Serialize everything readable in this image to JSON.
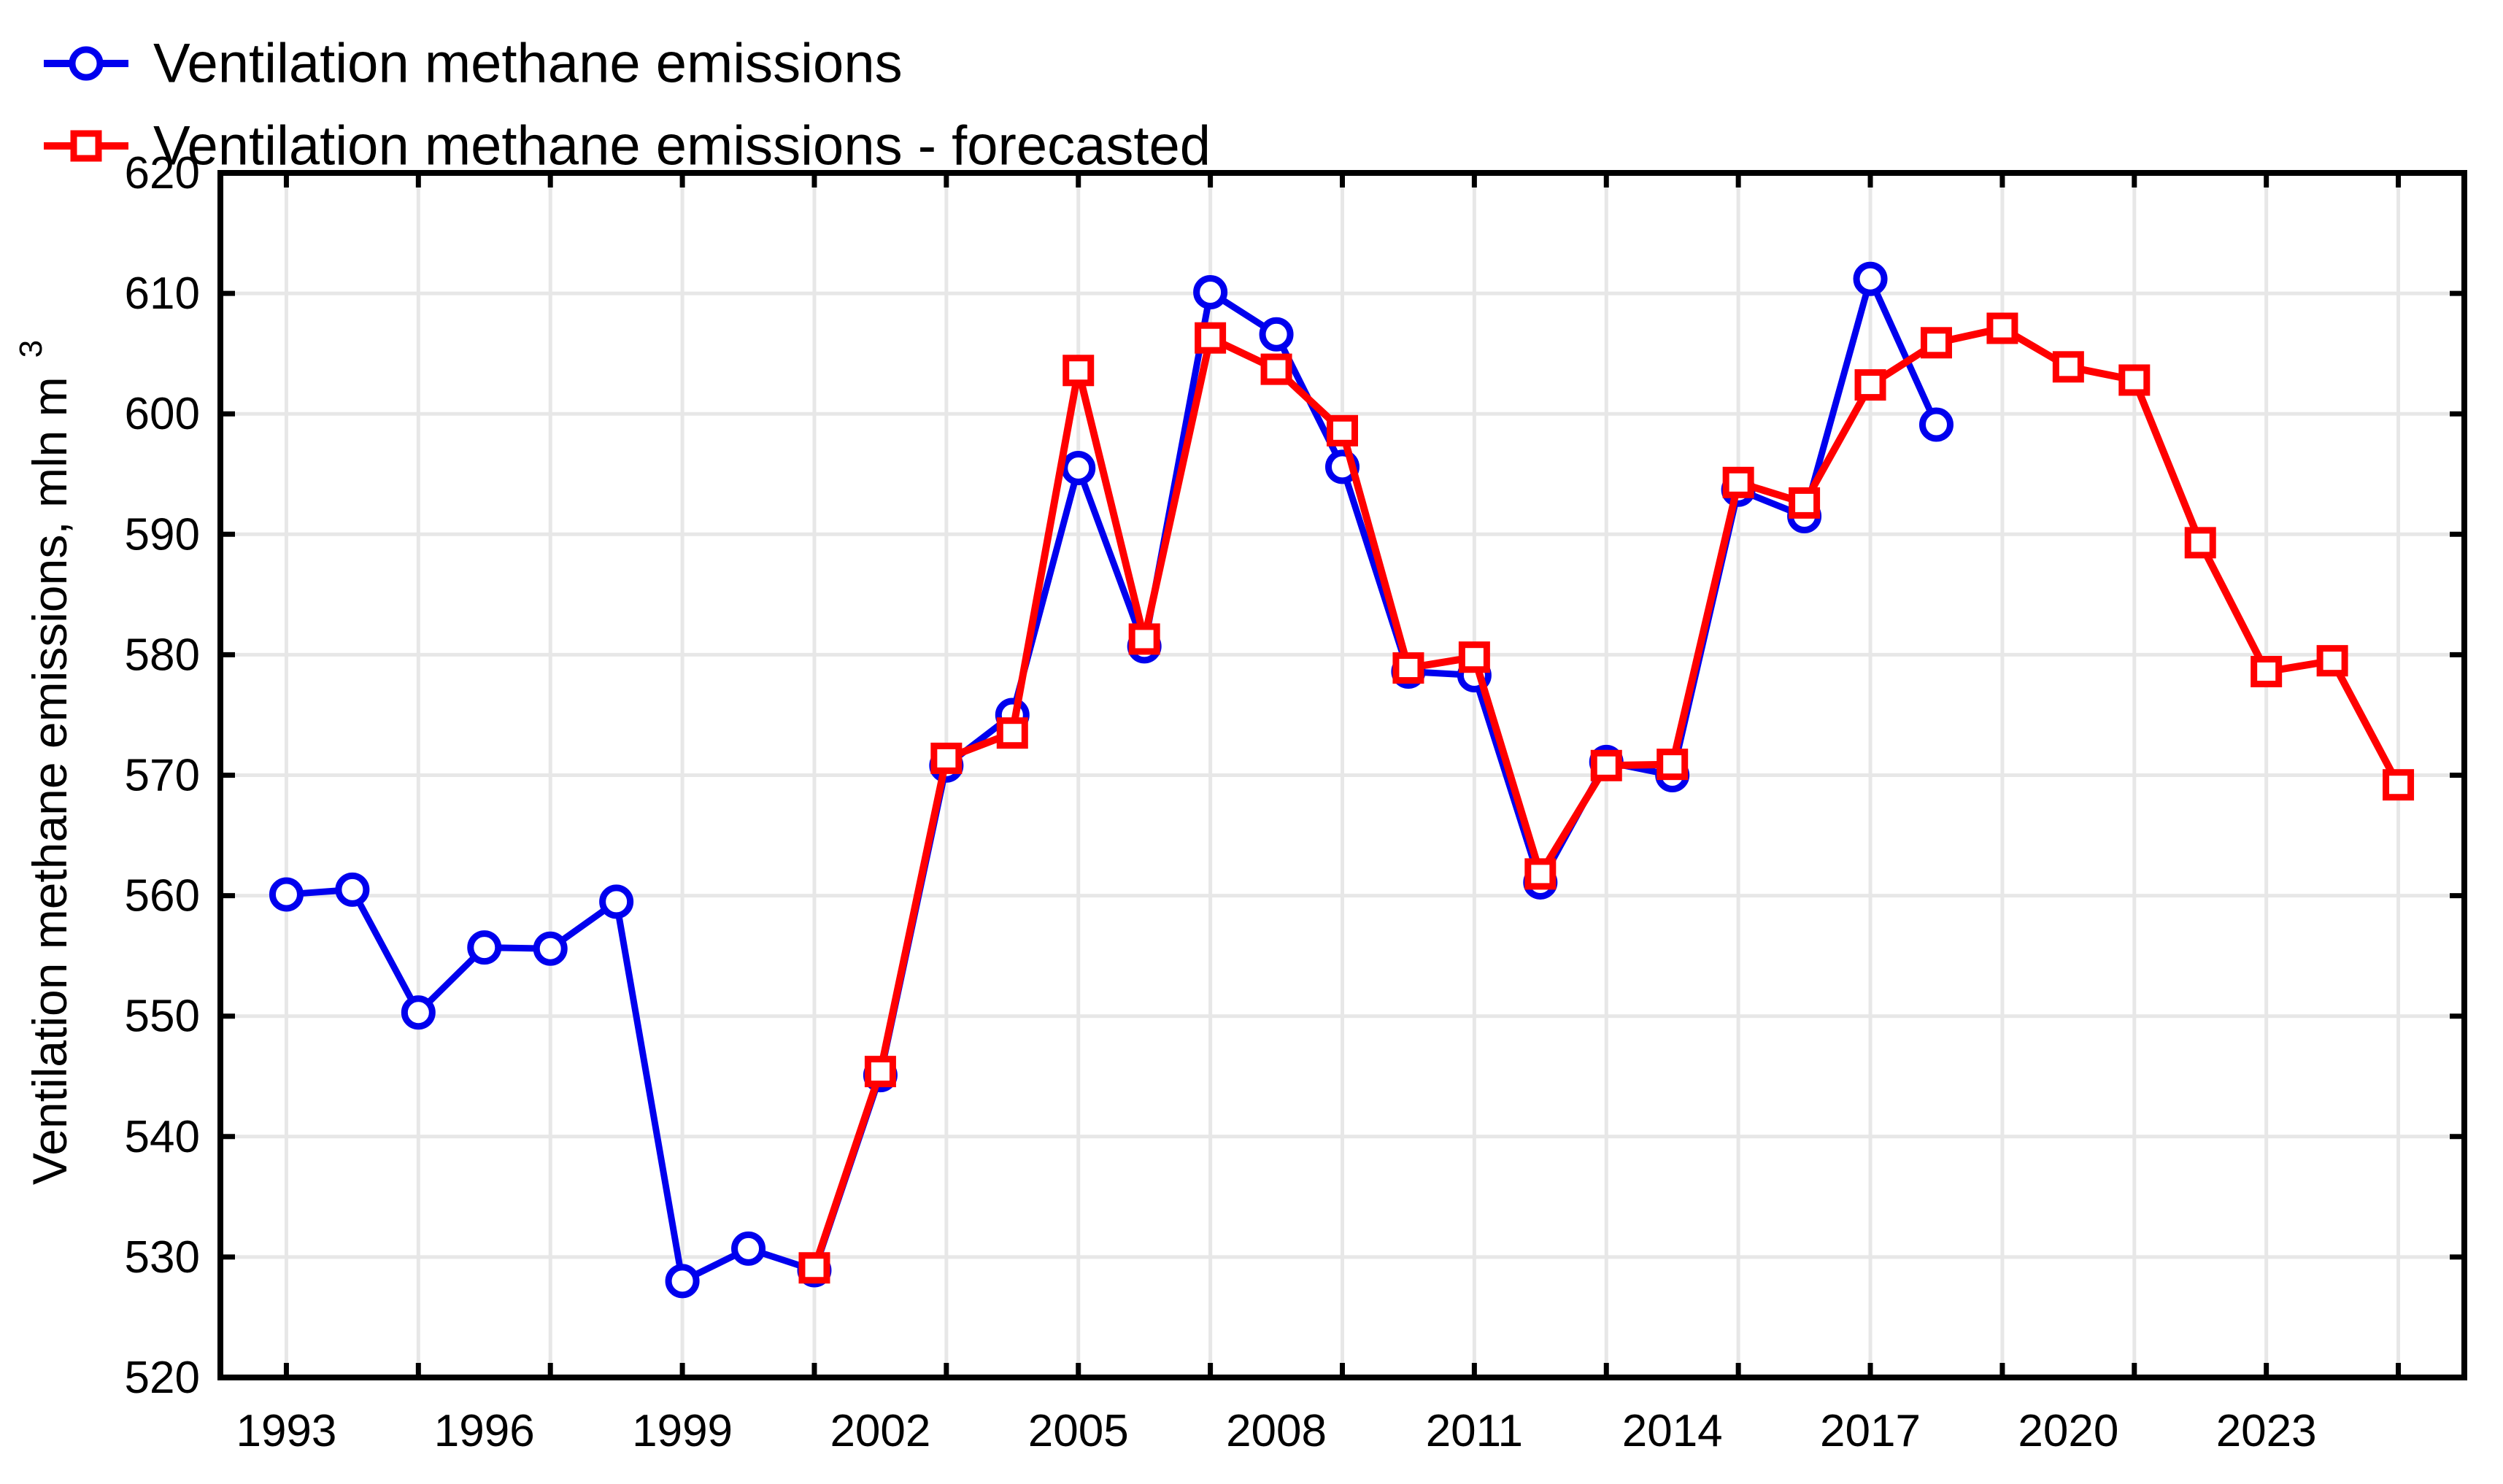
{
  "legend": {
    "items": [
      {
        "label": "Ventilation methane emissions",
        "color": "#0000ee",
        "marker": "circle"
      },
      {
        "label": "Ventilation methane emissions - forecasted",
        "color": "#ff0000",
        "marker": "square"
      }
    ]
  },
  "axes": {
    "y_title": "Ventilation methane emissions, mln m",
    "y_title_sup": "3",
    "y_tick_labels": [
      "520",
      "530",
      "540",
      "550",
      "560",
      "570",
      "580",
      "590",
      "600",
      "610",
      "620"
    ],
    "x_tick_labels": [
      "1993",
      "1996",
      "1999",
      "2002",
      "2005",
      "2008",
      "2011",
      "2014",
      "2017",
      "2020",
      "2023"
    ]
  },
  "colors": {
    "actual": "#0000ee",
    "forecast": "#ff0000",
    "gridline": "#e7e7e7",
    "frame": "#000000"
  },
  "chart_data": {
    "type": "line",
    "title": "",
    "xlabel": "",
    "ylabel": "Ventilation methane emissions, mln m3",
    "xlim": [
      1992,
      2026
    ],
    "ylim": [
      520,
      620
    ],
    "grid": true,
    "legend_position": "top-left",
    "x_tick_step_years": 2,
    "x_first_tick_year": 1993,
    "x_last_tick_year": 2025,
    "x_label_years": [
      1993,
      1996,
      1999,
      2002,
      2005,
      2008,
      2011,
      2014,
      2017,
      2020,
      2023
    ],
    "y_ticks": [
      520,
      530,
      540,
      550,
      560,
      570,
      580,
      590,
      600,
      610,
      620
    ],
    "series": [
      {
        "name": "Ventilation methane emissions",
        "color": "#0000ee",
        "marker": "circle",
        "years": [
          1993,
          1994,
          1995,
          1996,
          1997,
          1998,
          1999,
          2000,
          2001,
          2002,
          2003,
          2004,
          2005,
          2006,
          2007,
          2008,
          2009,
          2010,
          2011,
          2012,
          2013,
          2014,
          2015,
          2016,
          2017,
          2018
        ],
        "values": [
          560.1,
          560.5,
          550.3,
          555.7,
          555.6,
          559.5,
          528.0,
          530.7,
          528.9,
          545.1,
          570.8,
          575.0,
          595.5,
          580.7,
          610.1,
          606.6,
          595.6,
          578.6,
          578.3,
          561.1,
          571.1,
          570.0,
          593.7,
          591.5,
          611.2,
          599.1
        ]
      },
      {
        "name": "Ventilation methane emissions - forecasted",
        "color": "#ff0000",
        "marker": "square",
        "years": [
          2001,
          2002,
          2003,
          2004,
          2005,
          2006,
          2007,
          2008,
          2009,
          2010,
          2011,
          2012,
          2013,
          2014,
          2015,
          2016,
          2017,
          2018,
          2019,
          2020,
          2021,
          2022,
          2023,
          2024,
          2025
        ],
        "values": [
          529.1,
          545.4,
          571.4,
          573.5,
          603.6,
          581.3,
          606.3,
          603.7,
          598.6,
          578.9,
          579.8,
          561.8,
          570.8,
          570.9,
          594.3,
          592.6,
          602.4,
          605.9,
          607.1,
          603.9,
          602.8,
          589.3,
          578.6,
          579.5,
          569.2
        ]
      }
    ]
  }
}
